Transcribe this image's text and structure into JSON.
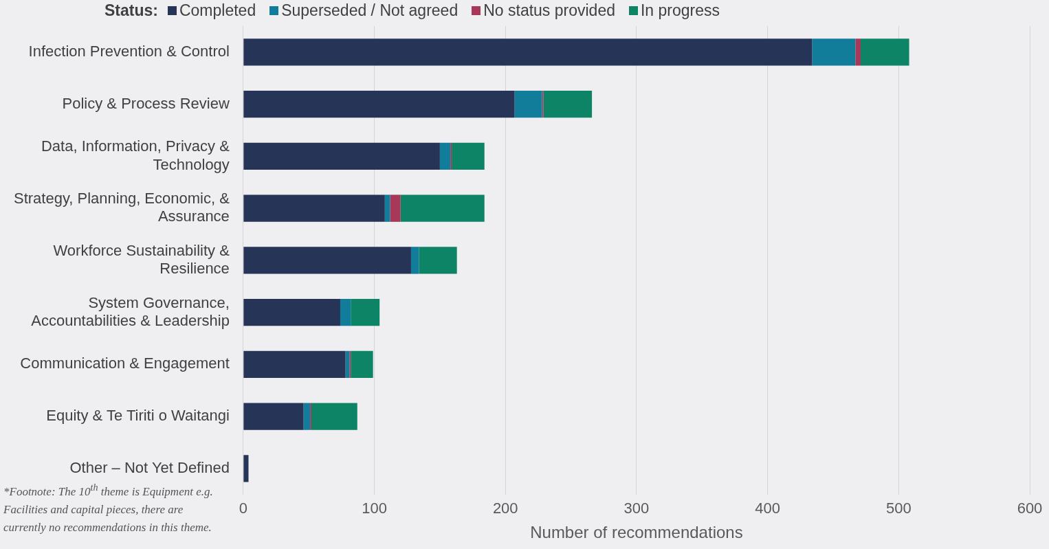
{
  "chart_data": {
    "type": "bar",
    "orientation": "horizontal",
    "stacked": true,
    "categories": [
      "Infection Prevention & Control",
      "Policy & Process Review",
      "Data, Information, Privacy & Technology",
      "Strategy, Planning, Economic, & Assurance",
      "Workforce Sustainability & Resilience",
      "System Governance, Accountabilities & Leadership",
      "Communication & Engagement",
      "Equity & Te Tiriti o Waitangi",
      "Other – Not Yet Defined"
    ],
    "series": [
      {
        "name": "Completed",
        "color": "#253457",
        "values": [
          434,
          207,
          150,
          108,
          128,
          74,
          78,
          46,
          4
        ]
      },
      {
        "name": "Superseded / Not agreed",
        "color": "#127c9b",
        "values": [
          33,
          21,
          8,
          4,
          6,
          8,
          3,
          5,
          0
        ]
      },
      {
        "name": "No status provided",
        "color": "#a8385a",
        "values": [
          4,
          1,
          1,
          8,
          0,
          0,
          1,
          1,
          0
        ]
      },
      {
        "name": "In progress",
        "color": "#0e8466",
        "values": [
          37,
          37,
          25,
          64,
          29,
          22,
          17,
          35,
          0
        ]
      }
    ],
    "legend_title": "Status:",
    "legend": "top",
    "xlabel": "Number of recommendations",
    "xlim": [
      0,
      600
    ],
    "xticks": [
      0,
      100,
      200,
      300,
      400,
      500,
      600
    ],
    "grid": "x",
    "annotations": [
      "*Footnote: The 10$^{th}$ theme is Equipment e.g. Facilities and capital pieces, there are currently no recommendations in this theme."
    ]
  }
}
